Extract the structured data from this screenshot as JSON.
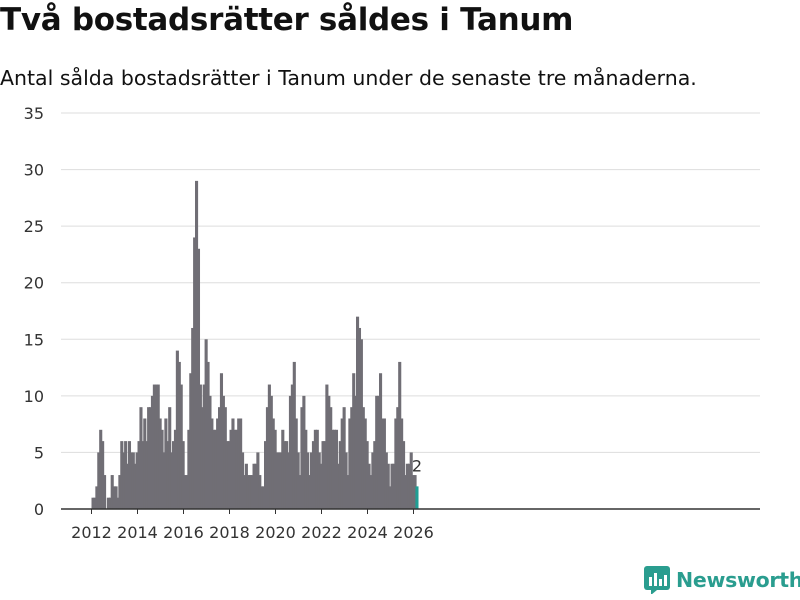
{
  "colors": {
    "bar": "#706e75",
    "highlight": "#1f9e94",
    "grid": "#dddddd",
    "axis": "#333333",
    "brand": "#2a9d8f"
  },
  "logo": {
    "text": "Newsworthy",
    "icon": "bar-chart-logo-icon"
  },
  "chart_data": {
    "type": "bar",
    "title": "Två bostadsrätter såldes i Tanum",
    "subtitle": "Antal sålda bostadsrätter i Tanum under de senaste tre månaderna.",
    "xlabel": "",
    "ylabel": "",
    "ylim": [
      0,
      35
    ],
    "yticks": [
      0,
      5,
      10,
      15,
      20,
      25,
      30,
      35
    ],
    "xticks": [
      2012,
      2014,
      2016,
      2018,
      2020,
      2022,
      2024,
      2026
    ],
    "start": "2012-01",
    "grid": true,
    "values": [
      1,
      1,
      2,
      5,
      7,
      6,
      3,
      0,
      1,
      1,
      3,
      2,
      2,
      1,
      3,
      6,
      5,
      6,
      4,
      6,
      5,
      5,
      4,
      5,
      6,
      9,
      6,
      8,
      6,
      9,
      9,
      10,
      11,
      11,
      11,
      8,
      7,
      5,
      8,
      6,
      9,
      5,
      6,
      7,
      14,
      13,
      11,
      6,
      3,
      3,
      7,
      12,
      16,
      24,
      29,
      23,
      11,
      9,
      11,
      15,
      13,
      10,
      8,
      7,
      7,
      8,
      9,
      12,
      10,
      9,
      6,
      6,
      7,
      8,
      7,
      7,
      8,
      8,
      5,
      3,
      4,
      3,
      3,
      3,
      4,
      4,
      5,
      3,
      2,
      2,
      6,
      9,
      11,
      10,
      8,
      7,
      5,
      5,
      5,
      7,
      6,
      6,
      5,
      10,
      11,
      13,
      8,
      5,
      3,
      9,
      10,
      7,
      5,
      3,
      5,
      6,
      7,
      7,
      5,
      4,
      6,
      6,
      11,
      10,
      9,
      7,
      7,
      7,
      4,
      6,
      8,
      9,
      5,
      3,
      8,
      9,
      12,
      10,
      17,
      16,
      15,
      9,
      8,
      6,
      4,
      3,
      5,
      6,
      10,
      10,
      12,
      8,
      8,
      5,
      4,
      2,
      4,
      4,
      8,
      9,
      13,
      8,
      6,
      3,
      4,
      4,
      5,
      3,
      3,
      2
    ],
    "highlight_last": 1,
    "annotation": {
      "label": "2"
    }
  }
}
